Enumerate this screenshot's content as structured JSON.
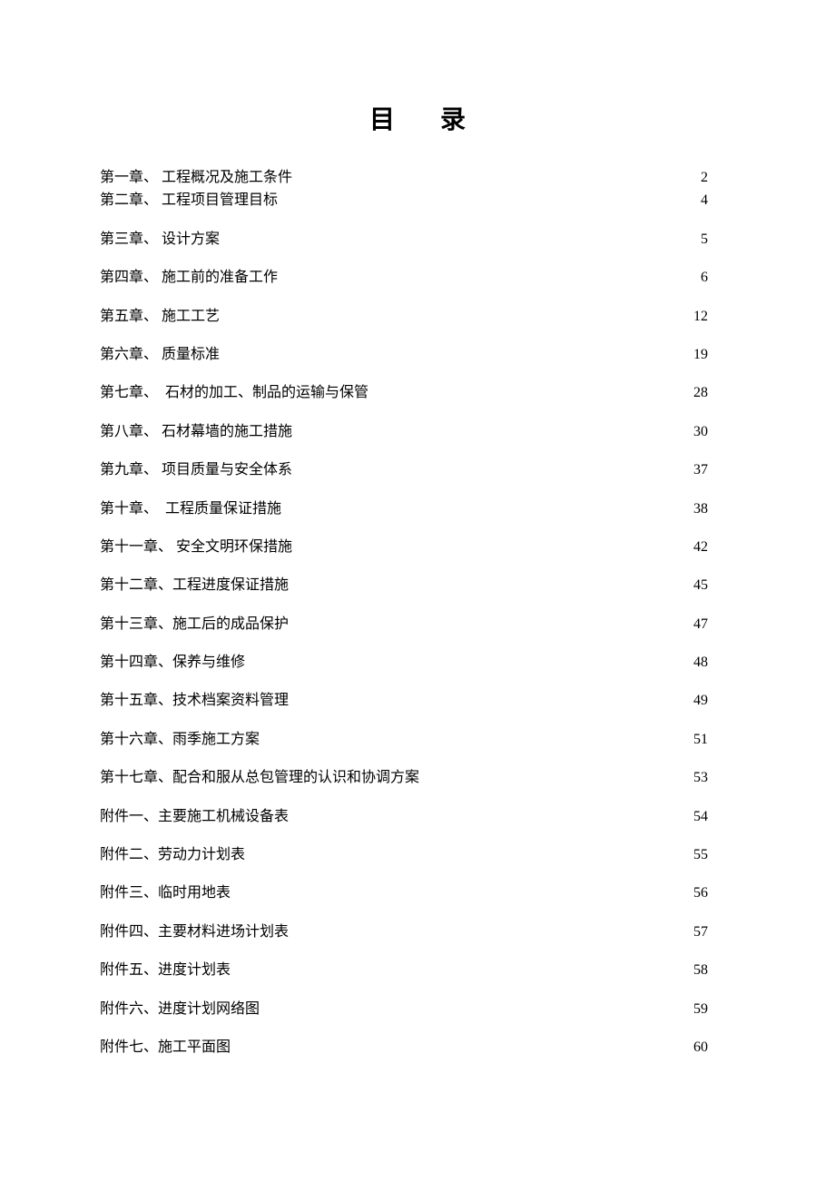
{
  "title": "目录",
  "text_color": "#000000",
  "background_color": "#ffffff",
  "title_fontsize": 28,
  "body_fontsize": 16,
  "entries": [
    {
      "chapter": "第一章、",
      "title": " 工程概况及施工条件",
      "page": "2",
      "spacing": "tight"
    },
    {
      "chapter": "第二章、",
      "title": " 工程项目管理目标",
      "page": "4",
      "spacing": "spaced"
    },
    {
      "chapter": "第三章、",
      "title": " 设计方案",
      "page": "5",
      "spacing": "spaced"
    },
    {
      "chapter": "第四章、",
      "title": " 施工前的准备工作",
      "page": "6",
      "spacing": "spaced"
    },
    {
      "chapter": "第五章、",
      "title": " 施工工艺",
      "page": "12",
      "spacing": "spaced"
    },
    {
      "chapter": "第六章、",
      "title": " 质量标准",
      "page": "19",
      "spacing": "spaced"
    },
    {
      "chapter": "第七章、",
      "title": "  石材的加工、制品的运输与保管",
      "page": "28",
      "spacing": "spaced"
    },
    {
      "chapter": "第八章、",
      "title": " 石材幕墙的施工措施",
      "page": "30",
      "spacing": "spaced"
    },
    {
      "chapter": "第九章、",
      "title": " 项目质量与安全体系",
      "page": "37",
      "spacing": "spaced"
    },
    {
      "chapter": "第十章、",
      "title": "  工程质量保证措施",
      "page": "38",
      "spacing": "spaced"
    },
    {
      "chapter": "第十一章、",
      "title": " 安全文明环保措施",
      "page": "42",
      "spacing": "spaced"
    },
    {
      "chapter": "第十二章、",
      "title": "工程进度保证措施",
      "page": "45",
      "spacing": "spaced"
    },
    {
      "chapter": "第十三章、",
      "title": "施工后的成品保护",
      "page": "47",
      "spacing": "spaced"
    },
    {
      "chapter": "第十四章、",
      "title": "保养与维修",
      "page": "48",
      "spacing": "spaced"
    },
    {
      "chapter": "第十五章、",
      "title": "技术档案资料管理",
      "page": "49",
      "spacing": "spaced"
    },
    {
      "chapter": "第十六章、",
      "title": "雨季施工方案",
      "page": "51",
      "spacing": "spaced"
    },
    {
      "chapter": "第十七章、",
      "title": "配合和服从总包管理的认识和协调方案",
      "page": "53",
      "spacing": "spaced"
    },
    {
      "chapter": "附件一、",
      "title": "主要施工机械设备表",
      "page": "54",
      "spacing": "spaced"
    },
    {
      "chapter": "附件二、",
      "title": "劳动力计划表",
      "page": "55",
      "spacing": "spaced"
    },
    {
      "chapter": "附件三、",
      "title": "临时用地表",
      "page": "56",
      "spacing": "spaced"
    },
    {
      "chapter": "附件四、",
      "title": "主要材料进场计划表",
      "page": "57",
      "spacing": "spaced"
    },
    {
      "chapter": "附件五、",
      "title": "进度计划表",
      "page": "58",
      "spacing": "spaced"
    },
    {
      "chapter": "附件六、",
      "title": "进度计划网络图",
      "page": "59",
      "spacing": "spaced"
    },
    {
      "chapter": "附件七、",
      "title": "施工平面图",
      "page": "60",
      "spacing": "spaced"
    }
  ]
}
